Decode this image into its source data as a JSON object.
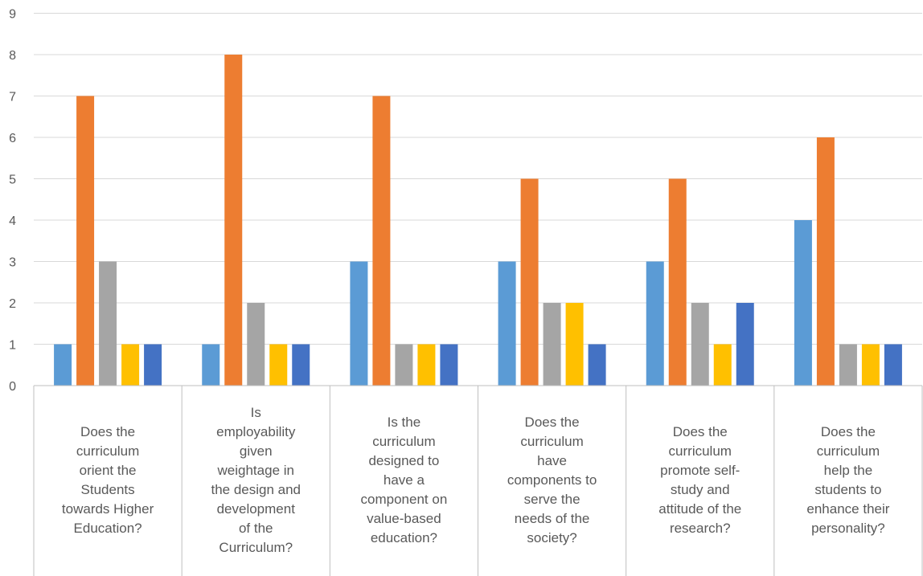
{
  "chart_data": {
    "type": "bar",
    "ylim": [
      0,
      9
    ],
    "yticks": [
      "0",
      "1",
      "2",
      "3",
      "4",
      "5",
      "6",
      "7",
      "8",
      "9"
    ],
    "grid": true,
    "categories": [
      "Does the curriculum orient the Students towards Higher Education?",
      "Is employability given weightage in the design and development of the Curriculum?",
      "Is the curriculum designed to have a component on value-based education?",
      "Does the curriculum have components to serve the needs of the society?",
      "Does the curriculum promote self-study and attitude of the research?",
      "Does the curriculum help the students to enhance their personality?"
    ],
    "category_lines": [
      [
        "Does the",
        "curriculum",
        "orient the",
        "Students",
        "towards Higher",
        "Education?"
      ],
      [
        "Is",
        "employability",
        "given",
        "weightage in",
        "the design and",
        "development",
        "of the",
        "Curriculum?"
      ],
      [
        "Is the",
        "curriculum",
        "designed to",
        "have a",
        "component on",
        "value-based",
        "education?"
      ],
      [
        "Does the",
        "curriculum",
        "have",
        "components to",
        "serve the",
        "needs of the",
        "society?"
      ],
      [
        "Does the",
        "curriculum",
        "promote self-",
        "study and",
        "attitude of the",
        "research?"
      ],
      [
        "Does the",
        "curriculum",
        "help the",
        "students to",
        "enhance their",
        "personality?"
      ]
    ],
    "series": [
      {
        "color": "#5B9BD5",
        "values": [
          1,
          1,
          3,
          3,
          3,
          4
        ]
      },
      {
        "color": "#ED7D31",
        "values": [
          7,
          8,
          7,
          5,
          5,
          6
        ]
      },
      {
        "color": "#A5A5A5",
        "values": [
          3,
          2,
          1,
          2,
          2,
          1
        ]
      },
      {
        "color": "#FFC000",
        "values": [
          1,
          1,
          1,
          2,
          1,
          1
        ]
      },
      {
        "color": "#4472C4",
        "values": [
          1,
          1,
          1,
          1,
          2,
          1
        ]
      }
    ]
  }
}
